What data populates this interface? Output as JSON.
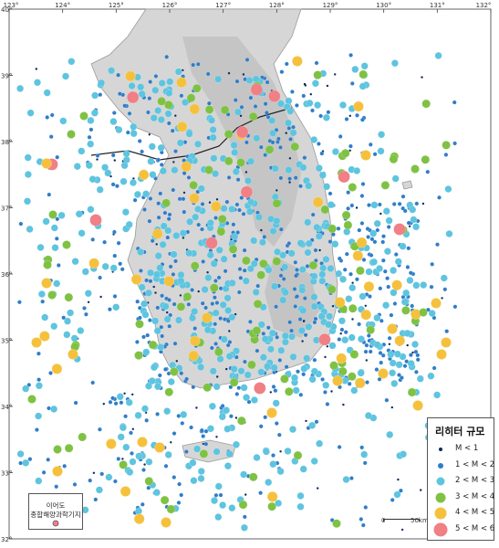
{
  "map": {
    "lon_ticks": [
      "123°",
      "124°",
      "125°",
      "126°",
      "127°",
      "128°",
      "129°",
      "130°",
      "131°",
      "132°"
    ],
    "lat_ticks": [
      "40°",
      "39°",
      "38°",
      "37°",
      "36°",
      "35°",
      "34°",
      "33°",
      "32°"
    ],
    "colors": {
      "sea": "#ffffff",
      "land": "#d9d9d9",
      "m1": "#0b2b5e",
      "m12": "#2f7dc9",
      "m23": "#5ec4df",
      "m34": "#7fc243",
      "m45": "#f5c13d",
      "m56": "#f07f86"
    }
  },
  "legend": {
    "title": "리히터 규모",
    "items": [
      {
        "label": "M < 1",
        "color": "#0b2b5e",
        "size": 2
      },
      {
        "label": "1 < M < 2",
        "color": "#2f7dc9",
        "size": 3
      },
      {
        "label": "2 < M < 3",
        "color": "#5ec4df",
        "size": 4.5
      },
      {
        "label": "3 < M < 4",
        "color": "#7fc243",
        "size": 5.5
      },
      {
        "label": "4 < M < 5",
        "color": "#f5c13d",
        "size": 6.5
      },
      {
        "label": "5 < M < 6",
        "color": "#f07f86",
        "size": 7.5
      }
    ]
  },
  "inset": {
    "line1": "이어도",
    "line2": "종합해양과학기지"
  },
  "scale": {
    "zero": "0",
    "distance": "50km"
  }
}
